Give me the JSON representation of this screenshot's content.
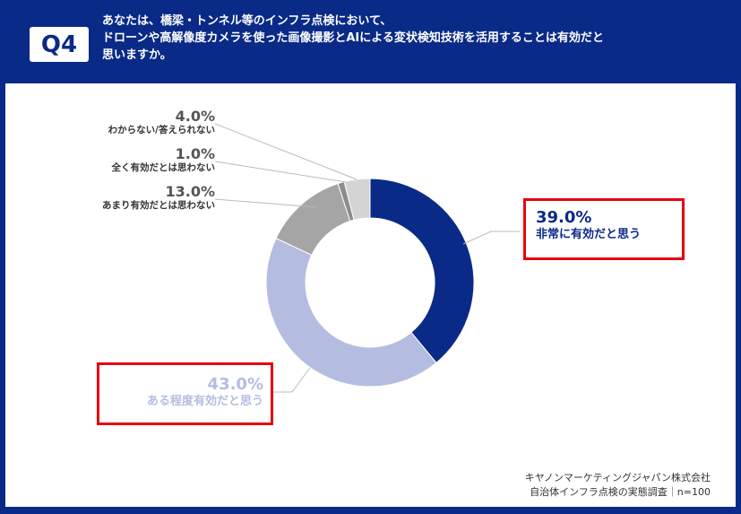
{
  "question": {
    "badge": "Q4",
    "lines": [
      "あなたは、橋梁・トンネル等のインフラ点検において、",
      "ドローンや高解像度カメラを使った画像撮影とAIによる変状検知技術を活用することは有効だと",
      "思いますか。"
    ]
  },
  "chart_data": {
    "type": "pie",
    "variant": "donut",
    "slices": [
      {
        "label": "非常に有効だと思う",
        "value": 39.0,
        "pct_label": "39.0%",
        "color": "#0a2a87"
      },
      {
        "label": "ある程度有効だと思う",
        "value": 43.0,
        "pct_label": "43.0%",
        "color": "#b4bde0"
      },
      {
        "label": "あまり有効だとは思わない",
        "value": 13.0,
        "pct_label": "13.0%",
        "color": "#a5a5a5"
      },
      {
        "label": "全く有効だとは思わない",
        "value": 1.0,
        "pct_label": "1.0%",
        "color": "#8c8c8c"
      },
      {
        "label": "わからない/答えられない",
        "value": 4.0,
        "pct_label": "4.0%",
        "color": "#d4d4d4"
      }
    ],
    "start_angle_deg": 0,
    "direction": "clockwise",
    "highlighted": [
      "非常に有効だと思う",
      "ある程度有効だと思う"
    ]
  },
  "footer": {
    "company": "キヤノンマーケティングジャパン株式会社",
    "survey": "自治体インフラ点検の実態調査｜n=100"
  }
}
